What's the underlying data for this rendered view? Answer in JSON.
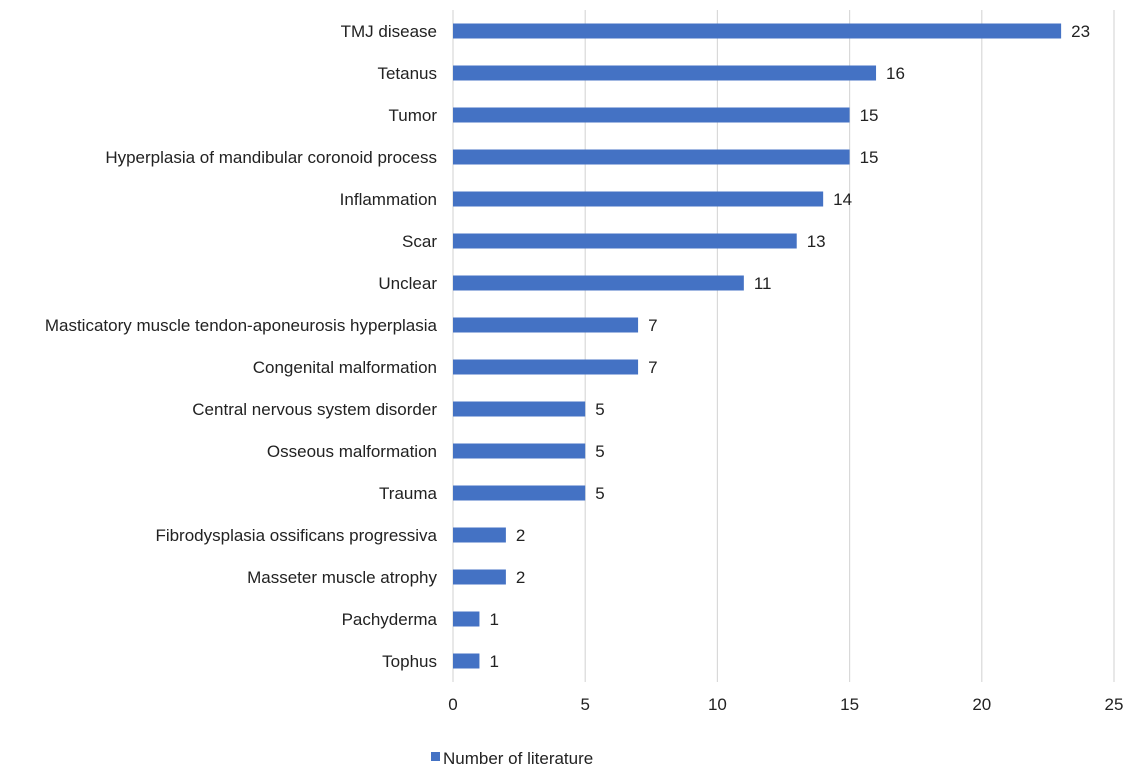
{
  "chart_data": {
    "type": "bar",
    "orientation": "horizontal",
    "categories": [
      "TMJ disease",
      "Tetanus",
      "Tumor",
      "Hyperplasia of mandibular coronoid process",
      "Inflammation",
      "Scar",
      "Unclear",
      "Masticatory muscle tendon-aponeurosis hyperplasia",
      "Congenital malformation",
      "Central nervous system disorder",
      "Osseous malformation",
      "Trauma",
      "Fibrodysplasia ossificans progressiva",
      "Masseter muscle atrophy",
      "Pachyderma",
      "Tophus"
    ],
    "series": [
      {
        "name": "Number of literature",
        "values": [
          23,
          16,
          15,
          15,
          14,
          13,
          11,
          7,
          7,
          5,
          5,
          5,
          2,
          2,
          1,
          1
        ],
        "color": "#4472c4"
      }
    ],
    "xlim": [
      0,
      25
    ],
    "xticks": [
      0,
      5,
      10,
      15,
      20,
      25
    ],
    "grid": "vertical",
    "legend_position": "bottom-left",
    "title": "",
    "xlabel": "",
    "ylabel": ""
  }
}
